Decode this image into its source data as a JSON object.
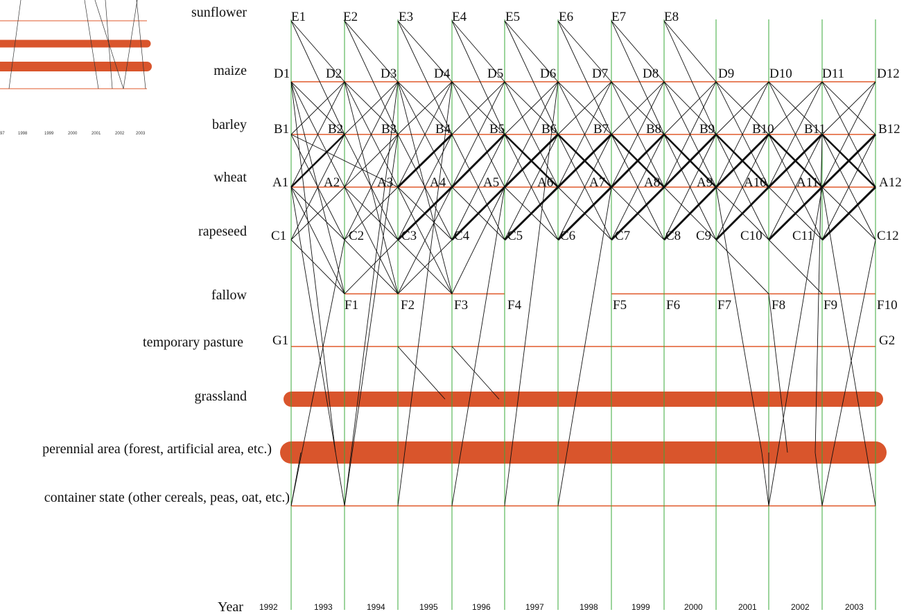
{
  "rows": [
    {
      "key": "sunflower",
      "label": "sunflower"
    },
    {
      "key": "maize",
      "label": "maize"
    },
    {
      "key": "barley",
      "label": "barley"
    },
    {
      "key": "wheat",
      "label": "wheat"
    },
    {
      "key": "rapeseed",
      "label": "rapeseed"
    },
    {
      "key": "fallow",
      "label": "fallow"
    },
    {
      "key": "temporary_pasture",
      "label": "temporary pasture"
    },
    {
      "key": "grassland",
      "label": "grassland"
    },
    {
      "key": "perennial",
      "label": "perennial area (forest, artificial area, etc.)"
    },
    {
      "key": "container",
      "label": "container state (other cereals, peas, oat, etc.)"
    }
  ],
  "year_axis_title": "Year",
  "years": [
    "1992",
    "1993",
    "1994",
    "1995",
    "1996",
    "1997",
    "1998",
    "1999",
    "2000",
    "2001",
    "2002",
    "2003"
  ],
  "inset_years": [
    "97",
    "1998",
    "1999",
    "2000",
    "2001",
    "2002",
    "2003"
  ],
  "nodes": {
    "E": [
      "E1",
      "E2",
      "E3",
      "E4",
      "E5",
      "E6",
      "E7",
      "E8"
    ],
    "D": [
      "D1",
      "D2",
      "D3",
      "D4",
      "D5",
      "D6",
      "D7",
      "D8",
      "D9",
      "D10",
      "D11",
      "D12"
    ],
    "B": [
      "B1",
      "B2",
      "B3",
      "B4",
      "B5",
      "B6",
      "B7",
      "B8",
      "B9",
      "B10",
      "B11",
      "B12"
    ],
    "A": [
      "A1",
      "A2",
      "A3",
      "A4",
      "A5",
      "A6",
      "A7",
      "A8",
      "A9",
      "A10",
      "A11",
      "A12"
    ],
    "C": [
      "C1",
      "C2",
      "C3",
      "C4",
      "C5",
      "C6",
      "C7",
      "C8",
      "C9",
      "C10",
      "C11",
      "C12"
    ],
    "F": [
      "F1",
      "F2",
      "F3",
      "F4",
      "F5",
      "F6",
      "F7",
      "F8",
      "F9",
      "F10"
    ],
    "G": [
      "G1",
      "G2"
    ]
  },
  "colors": {
    "year_line": "#3aa83a",
    "state_line": "#e05a2b",
    "band": "#d9552c",
    "transition": "#111111"
  }
}
